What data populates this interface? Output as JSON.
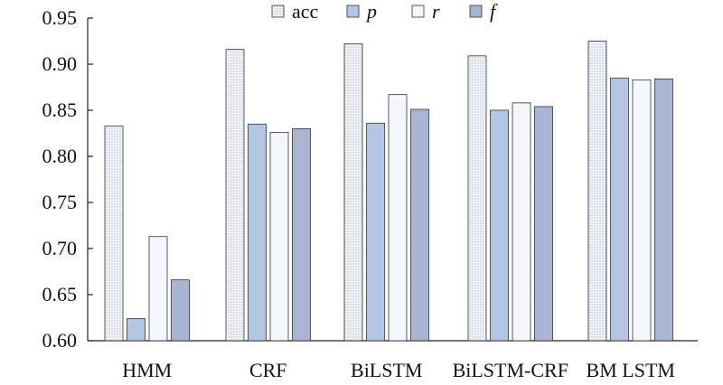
{
  "chart_data": {
    "type": "bar",
    "categories": [
      "HMM",
      "CRF",
      "BiLSTM",
      "BiLSTM-CRF",
      "BM LSTM"
    ],
    "series": [
      {
        "name": "acc",
        "values": [
          0.833,
          0.916,
          0.922,
          0.909,
          0.925
        ]
      },
      {
        "name": "p",
        "values": [
          0.624,
          0.835,
          0.836,
          0.85,
          0.885
        ]
      },
      {
        "name": "r",
        "values": [
          0.713,
          0.826,
          0.867,
          0.858,
          0.883
        ]
      },
      {
        "name": "f",
        "values": [
          0.666,
          0.83,
          0.851,
          0.854,
          0.884
        ]
      }
    ],
    "title": "",
    "xlabel": "",
    "ylabel": "",
    "ylim": [
      0.6,
      0.95
    ],
    "yticks": [
      "0.60",
      "0.65",
      "0.70",
      "0.75",
      "0.80",
      "0.85",
      "0.90",
      "0.95"
    ],
    "grid": false,
    "legend_position": "top-center",
    "colors": {
      "acc": "#f2f4fa",
      "p": "#b3c7e4",
      "r": "#f6f7fb",
      "f": "#a9b3d2"
    }
  }
}
